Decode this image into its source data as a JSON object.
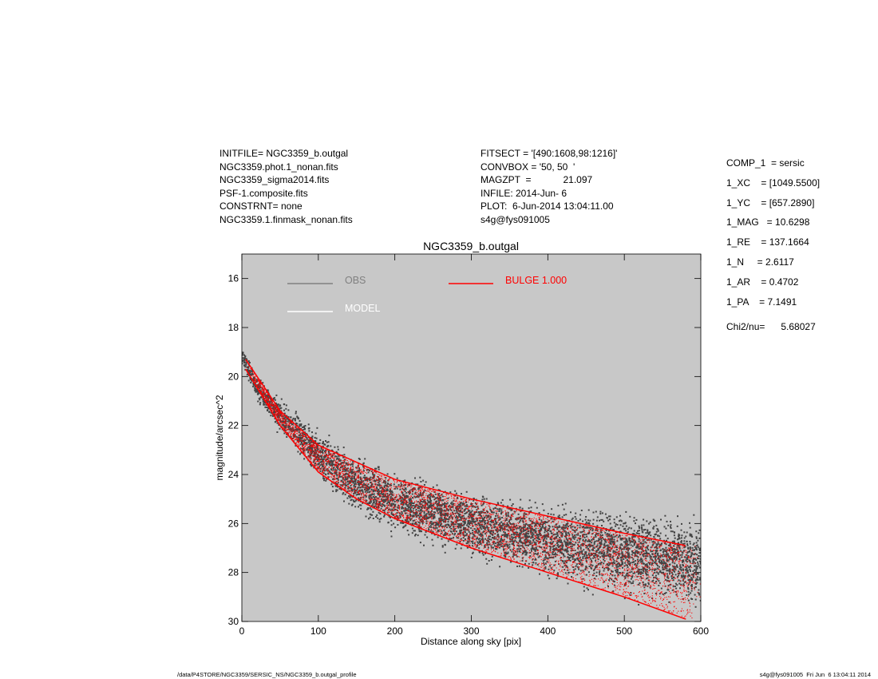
{
  "header": {
    "left": [
      "INITFILE= NGC3359_b.outgal",
      "NGC3359.phot.1_nonan.fits",
      "NGC3359_sigma2014.fits",
      "PSF-1.composite.fits",
      "CONSTRNT= none",
      "NGC3359.1.finmask_nonan.fits"
    ],
    "middle": [
      "FITSECT = '[490:1608,98:1216]'",
      "CONVBOX = '50, 50  '",
      "MAGZPT  =            21.097",
      "INFILE: 2014-Jun- 6",
      "PLOT:  6-Jun-2014 13:04:11.00",
      "s4g@fys091005"
    ],
    "right": [
      "COMP_1  = sersic",
      "1_XC    = [1049.5500]",
      "1_YC    = [657.2890]",
      "1_MAG   = 10.6298",
      "1_RE    = 137.1664",
      "1_N     = 2.6117",
      "1_AR    = 0.4702",
      "1_PA    = 7.1491"
    ],
    "chi2": "Chi2/nu=      5.68027"
  },
  "footer": {
    "left": "/data/P4STORE/NGC3359/SERSIC_NS/NGC3359_b.outgal_profile",
    "right": "s4g@fys091005  Fri Jun  6 13:04:11 2014"
  },
  "colors": {
    "plot_background": "#c8c8c8",
    "obs": "#444444",
    "obs_legend": "#808080",
    "model": "#ffffff",
    "bulge": "#ff0000"
  },
  "chart_data": {
    "type": "scatter",
    "title": "NGC3359_b.outgal",
    "xlabel": "Distance along sky [pix]",
    "ylabel": "magnitude/arcsec^2",
    "xlim": [
      0,
      600
    ],
    "ylim": [
      30,
      15
    ],
    "xticks": [
      0,
      100,
      200,
      300,
      400,
      500,
      600
    ],
    "yticks": [
      16,
      18,
      20,
      22,
      24,
      26,
      28,
      30
    ],
    "grid": false,
    "legend": [
      {
        "label": "OBS",
        "color": "#808080"
      },
      {
        "label": "MODEL",
        "color": "#ffffff"
      },
      {
        "label": "BULGE  1.000",
        "color": "#ff0000"
      }
    ],
    "legend_placement": "top",
    "series": [
      {
        "name": "OBS",
        "kind": "scatter cloud",
        "x": [
          0,
          20,
          50,
          100,
          150,
          200,
          300,
          400,
          500,
          600
        ],
        "y_upper": [
          18.9,
          19.9,
          20.8,
          22.0,
          23.0,
          23.7,
          24.5,
          24.9,
          25.1,
          25.3
        ],
        "y_lower": [
          19.5,
          21.0,
          22.4,
          24.3,
          25.8,
          26.6,
          27.6,
          28.5,
          29.3,
          30.0
        ]
      },
      {
        "name": "BULGE  1.000",
        "kind": "model band",
        "x": [
          5,
          50,
          100,
          150,
          200,
          300,
          400,
          500,
          580
        ],
        "y_upper": [
          19.3,
          21.4,
          22.8,
          23.5,
          24.2,
          25.0,
          25.7,
          26.4,
          26.9
        ],
        "y_lower": [
          19.7,
          22.0,
          23.9,
          25.0,
          25.8,
          27.0,
          28.0,
          29.0,
          29.9
        ]
      }
    ]
  }
}
